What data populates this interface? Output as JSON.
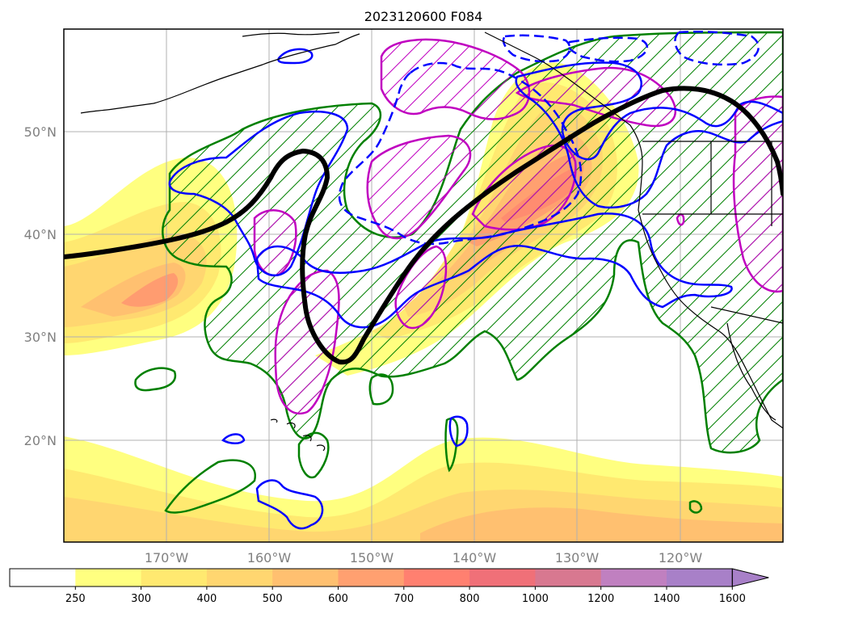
{
  "title": "2023120600 F084",
  "lat_labels": [
    "50°N",
    "40°N",
    "30°N",
    "20°N"
  ],
  "lon_labels": [
    "170°W",
    "160°W",
    "150°W",
    "140°W",
    "130°W",
    "120°W"
  ],
  "colorbar": {
    "ticks": [
      "250",
      "300",
      "400",
      "500",
      "600",
      "700",
      "800",
      "1000",
      "1200",
      "1400",
      "1600"
    ],
    "colors": [
      "#ffffff",
      "#ffff80",
      "#ffe970",
      "#ffd670",
      "#ffc070",
      "#ffa070",
      "#ff8070",
      "#f07078",
      "#d87890",
      "#c080c0",
      "#a880c8"
    ],
    "extend": "max"
  },
  "colors": {
    "jet_axis": "#000000",
    "green_contour": "#008000",
    "blue_contour": "#0000ff",
    "magenta_contour": "#c000c0",
    "grid": "#b0b0b0",
    "coastline": "#000000"
  }
}
